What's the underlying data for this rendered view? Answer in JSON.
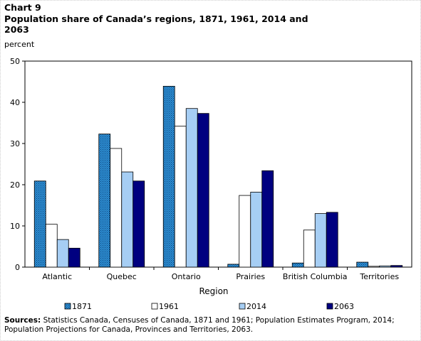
{
  "chart_number": "Chart 9",
  "chart_data": {
    "type": "bar",
    "title": "Population share of Canada’s regions, 1871, 1961, 2014 and 2063",
    "ylabel": "percent",
    "xlabel": "Region",
    "ylim": [
      0,
      50
    ],
    "yticks": [
      "0",
      "10",
      "20",
      "30",
      "40",
      "50"
    ],
    "grid": false,
    "legend_position": "bottom",
    "categories": [
      "Atlantic",
      "Quebec",
      "Ontario",
      "Prairies",
      "British Columbia",
      "Territories"
    ],
    "series": [
      {
        "name": "1871",
        "color": "#2e8fd3",
        "pattern": "dotted",
        "values": [
          20.9,
          32.3,
          43.9,
          0.7,
          1.0,
          1.2
        ]
      },
      {
        "name": "1961",
        "color": "#ffffff",
        "pattern": "none",
        "values": [
          10.4,
          28.8,
          34.2,
          17.4,
          9.0,
          0.2
        ]
      },
      {
        "name": "2014",
        "color": "#a6cef4",
        "pattern": "none",
        "values": [
          6.7,
          23.1,
          38.5,
          18.2,
          13.0,
          0.3
        ]
      },
      {
        "name": "2063",
        "color": "#000080",
        "pattern": "none",
        "values": [
          4.6,
          20.9,
          37.3,
          23.4,
          13.3,
          0.4
        ]
      }
    ]
  },
  "sources": {
    "label": "Sources:",
    "text": "Statistics Canada, Censuses of Canada, 1871 and 1961; Population Estimates Program, 2014; Population Projections for Canada, Provinces and Territories, 2063."
  }
}
